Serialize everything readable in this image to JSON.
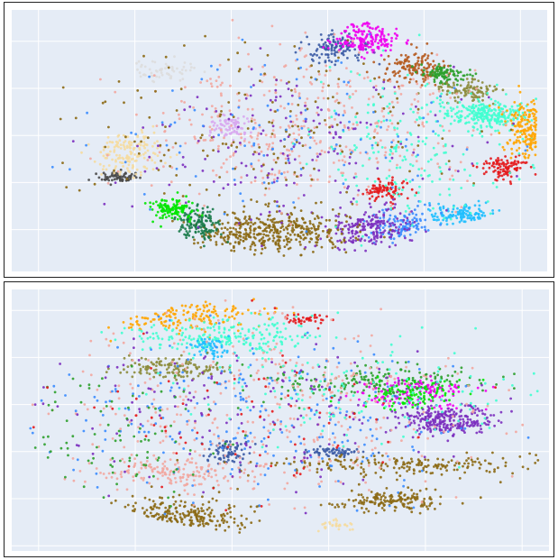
{
  "chart_data": [
    {
      "type": "scatter",
      "title": "",
      "xlabel": "",
      "ylabel": "",
      "grid": true,
      "legend": "none",
      "plot_background": "#e5ecf6",
      "gridline_color": "#ffffff",
      "point_count_per_cluster_approx": 120,
      "clusters": [
        {
          "color": "#3b5ba5",
          "cx": 0.6,
          "cy": 0.85,
          "sx": 0.03,
          "sy": 0.03,
          "n": 120
        },
        {
          "color": "#f000f0",
          "cx": 0.66,
          "cy": 0.89,
          "sx": 0.03,
          "sy": 0.03,
          "n": 180
        },
        {
          "color": "#b55a1e",
          "cx": 0.75,
          "cy": 0.78,
          "sx": 0.03,
          "sy": 0.03,
          "n": 140
        },
        {
          "color": "#2ca02c",
          "cx": 0.81,
          "cy": 0.75,
          "sx": 0.02,
          "sy": 0.02,
          "n": 110
        },
        {
          "color": "#8c8c3c",
          "cx": 0.85,
          "cy": 0.69,
          "sx": 0.03,
          "sy": 0.02,
          "n": 110
        },
        {
          "color": "#40ffd0",
          "cx": 0.89,
          "cy": 0.6,
          "sx": 0.04,
          "sy": 0.03,
          "n": 260
        },
        {
          "color": "#ffa500",
          "cx": 0.98,
          "cy": 0.55,
          "sx": 0.03,
          "sy": 0.06,
          "n": 340
        },
        {
          "color": "#e41a1c",
          "cx": 0.92,
          "cy": 0.4,
          "sx": 0.02,
          "sy": 0.02,
          "n": 100
        },
        {
          "color": "#e41a1c",
          "cx": 0.7,
          "cy": 0.31,
          "sx": 0.02,
          "sy": 0.02,
          "n": 90
        },
        {
          "color": "#1fbfff",
          "cx": 0.84,
          "cy": 0.22,
          "sx": 0.03,
          "sy": 0.02,
          "n": 130
        },
        {
          "color": "#3a8cff",
          "cx": 0.72,
          "cy": 0.18,
          "sx": 0.03,
          "sy": 0.03,
          "n": 110
        },
        {
          "color": "#7b2fbf",
          "cx": 0.67,
          "cy": 0.16,
          "sx": 0.04,
          "sy": 0.04,
          "n": 200
        },
        {
          "color": "#8b6914",
          "cx": 0.48,
          "cy": 0.15,
          "sx": 0.07,
          "sy": 0.04,
          "n": 420
        },
        {
          "color": "#1a7a4a",
          "cx": 0.35,
          "cy": 0.18,
          "sx": 0.02,
          "sy": 0.03,
          "n": 130
        },
        {
          "color": "#00e600",
          "cx": 0.3,
          "cy": 0.24,
          "sx": 0.02,
          "sy": 0.02,
          "n": 120
        },
        {
          "color": "#4a4a4a",
          "cx": 0.2,
          "cy": 0.36,
          "sx": 0.02,
          "sy": 0.01,
          "n": 70
        },
        {
          "color": "#f5dca0",
          "cx": 0.22,
          "cy": 0.45,
          "sx": 0.03,
          "sy": 0.04,
          "n": 160
        },
        {
          "color": "#d8a8f0",
          "cx": 0.41,
          "cy": 0.55,
          "sx": 0.02,
          "sy": 0.02,
          "n": 80
        },
        {
          "color": "#dddddd",
          "cx": 0.29,
          "cy": 0.77,
          "sx": 0.03,
          "sy": 0.02,
          "n": 60
        },
        {
          "color": "#f2a7a0",
          "cx": 0.55,
          "cy": 0.55,
          "sx": 0.15,
          "sy": 0.15,
          "n": 420
        },
        {
          "color": "#8b6914",
          "cx": 0.45,
          "cy": 0.55,
          "sx": 0.18,
          "sy": 0.18,
          "n": 180
        },
        {
          "color": "#7b2fbf",
          "cx": 0.55,
          "cy": 0.45,
          "sx": 0.18,
          "sy": 0.16,
          "n": 180
        },
        {
          "color": "#40ffd0",
          "cx": 0.75,
          "cy": 0.45,
          "sx": 0.1,
          "sy": 0.14,
          "n": 200
        },
        {
          "color": "#3a8cff",
          "cx": 0.5,
          "cy": 0.5,
          "sx": 0.18,
          "sy": 0.16,
          "n": 120
        }
      ]
    },
    {
      "type": "scatter",
      "title": "",
      "xlabel": "",
      "ylabel": "",
      "grid": true,
      "legend": "none",
      "plot_background": "#e5ecf6",
      "gridline_color": "#ffffff",
      "clusters": [
        {
          "color": "#ffa500",
          "cx": 0.3,
          "cy": 0.9,
          "sx": 0.08,
          "sy": 0.03,
          "n": 220
        },
        {
          "color": "#40ffd0",
          "cx": 0.4,
          "cy": 0.82,
          "sx": 0.1,
          "sy": 0.03,
          "n": 220
        },
        {
          "color": "#e41a1c",
          "cx": 0.55,
          "cy": 0.89,
          "sx": 0.02,
          "sy": 0.01,
          "n": 40
        },
        {
          "color": "#1fbfff",
          "cx": 0.37,
          "cy": 0.78,
          "sx": 0.02,
          "sy": 0.02,
          "n": 60
        },
        {
          "color": "#8c8c3c",
          "cx": 0.3,
          "cy": 0.7,
          "sx": 0.05,
          "sy": 0.02,
          "n": 140
        },
        {
          "color": "#2ca02c",
          "cx": 0.68,
          "cy": 0.65,
          "sx": 0.1,
          "sy": 0.03,
          "n": 200
        },
        {
          "color": "#f000f0",
          "cx": 0.75,
          "cy": 0.6,
          "sx": 0.06,
          "sy": 0.03,
          "n": 140
        },
        {
          "color": "#7b2fbf",
          "cx": 0.81,
          "cy": 0.5,
          "sx": 0.04,
          "sy": 0.03,
          "n": 260
        },
        {
          "color": "#00e600",
          "cx": 0.74,
          "cy": 0.6,
          "sx": 0.05,
          "sy": 0.03,
          "n": 100
        },
        {
          "color": "#3b5ba5",
          "cx": 0.4,
          "cy": 0.38,
          "sx": 0.02,
          "sy": 0.03,
          "n": 80
        },
        {
          "color": "#3b5ba5",
          "cx": 0.6,
          "cy": 0.38,
          "sx": 0.03,
          "sy": 0.01,
          "n": 60
        },
        {
          "color": "#f2a7a0",
          "cx": 0.3,
          "cy": 0.3,
          "sx": 0.08,
          "sy": 0.03,
          "n": 160
        },
        {
          "color": "#8b6914",
          "cx": 0.75,
          "cy": 0.33,
          "sx": 0.15,
          "sy": 0.02,
          "n": 200
        },
        {
          "color": "#8b6914",
          "cx": 0.28,
          "cy": 0.12,
          "sx": 0.08,
          "sy": 0.04,
          "n": 420
        },
        {
          "color": "#8b6914",
          "cx": 0.71,
          "cy": 0.19,
          "sx": 0.05,
          "sy": 0.02,
          "n": 160
        },
        {
          "color": "#f5dca0",
          "cx": 0.6,
          "cy": 0.1,
          "sx": 0.02,
          "sy": 0.01,
          "n": 30
        },
        {
          "color": "#f2a7a0",
          "cx": 0.5,
          "cy": 0.55,
          "sx": 0.2,
          "sy": 0.16,
          "n": 380
        },
        {
          "color": "#3a8cff",
          "cx": 0.45,
          "cy": 0.5,
          "sx": 0.22,
          "sy": 0.16,
          "n": 260
        },
        {
          "color": "#7b2fbf",
          "cx": 0.45,
          "cy": 0.55,
          "sx": 0.2,
          "sy": 0.14,
          "n": 160
        },
        {
          "color": "#40ffd0",
          "cx": 0.65,
          "cy": 0.6,
          "sx": 0.18,
          "sy": 0.12,
          "n": 140
        },
        {
          "color": "#2ca02c",
          "cx": 0.2,
          "cy": 0.45,
          "sx": 0.1,
          "sy": 0.12,
          "n": 100
        },
        {
          "color": "#e41a1c",
          "cx": 0.4,
          "cy": 0.5,
          "sx": 0.2,
          "sy": 0.16,
          "n": 80
        }
      ]
    }
  ]
}
